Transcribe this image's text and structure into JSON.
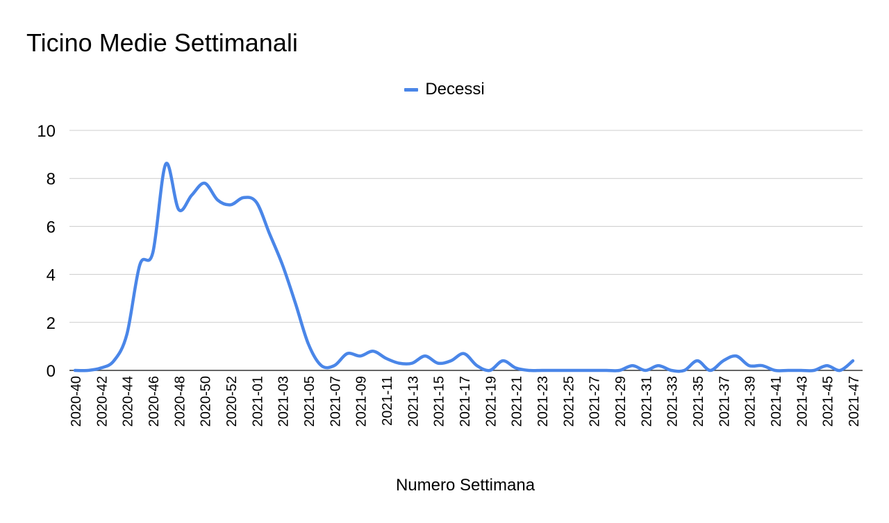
{
  "chart_data": {
    "type": "line",
    "title": "Ticino Medie Settimanali",
    "xlabel": "Numero Settimana",
    "ylabel": "",
    "ylim": [
      0,
      10
    ],
    "yticks": [
      0,
      2,
      4,
      6,
      8,
      10
    ],
    "grid": true,
    "legend_position": "top-center",
    "x": [
      "2020-40",
      "2020-41",
      "2020-42",
      "2020-43",
      "2020-44",
      "2020-45",
      "2020-46",
      "2020-47",
      "2020-48",
      "2020-49",
      "2020-50",
      "2020-51",
      "2020-52",
      "2020-53",
      "2021-01",
      "2021-02",
      "2021-03",
      "2021-04",
      "2021-05",
      "2021-06",
      "2021-07",
      "2021-08",
      "2021-09",
      "2021-10",
      "2021-11",
      "2021-12",
      "2021-13",
      "2021-14",
      "2021-15",
      "2021-16",
      "2021-17",
      "2021-18",
      "2021-19",
      "2021-20",
      "2021-21",
      "2021-22",
      "2021-23",
      "2021-24",
      "2021-25",
      "2021-26",
      "2021-27",
      "2021-28",
      "2021-29",
      "2021-30",
      "2021-31",
      "2021-32",
      "2021-33",
      "2021-34",
      "2021-35",
      "2021-36",
      "2021-37",
      "2021-38",
      "2021-39",
      "2021-40",
      "2021-41",
      "2021-42",
      "2021-43",
      "2021-44",
      "2021-45",
      "2021-46",
      "2021-47"
    ],
    "x_tick_labels": [
      "2020-40",
      "2020-42",
      "2020-44",
      "2020-46",
      "2020-48",
      "2020-50",
      "2020-52",
      "2021-01",
      "2021-03",
      "2021-05",
      "2021-07",
      "2021-09",
      "2021-11",
      "2021-13",
      "2021-15",
      "2021-17",
      "2021-19",
      "2021-21",
      "2021-23",
      "2021-25",
      "2021-27",
      "2021-29",
      "2021-31",
      "2021-33",
      "2021-35",
      "2021-37",
      "2021-39",
      "2021-41",
      "2021-43",
      "2021-45",
      "2021-47"
    ],
    "series": [
      {
        "name": "Decessi",
        "color": "#4a86e8",
        "values": [
          0,
          0,
          0.1,
          0.4,
          1.5,
          4.4,
          4.9,
          8.6,
          6.7,
          7.3,
          7.8,
          7.1,
          6.9,
          7.2,
          7.0,
          5.7,
          4.4,
          2.8,
          1.1,
          0.2,
          0.2,
          0.7,
          0.6,
          0.8,
          0.5,
          0.3,
          0.3,
          0.6,
          0.3,
          0.4,
          0.7,
          0.2,
          0.0,
          0.4,
          0.1,
          0,
          0,
          0,
          0,
          0,
          0,
          0,
          0,
          0.2,
          0,
          0.2,
          0,
          0,
          0.4,
          0,
          0.4,
          0.6,
          0.2,
          0.2,
          0,
          0,
          0,
          0,
          0.2,
          0,
          0.4
        ]
      }
    ]
  }
}
